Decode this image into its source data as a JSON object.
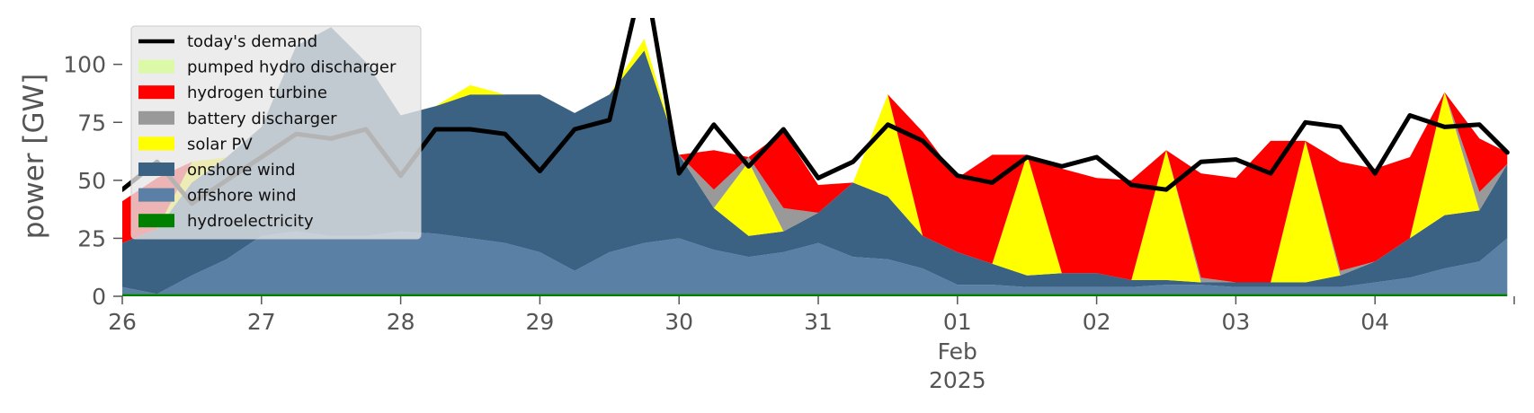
{
  "chart_data": {
    "type": "area",
    "ylabel": "power [GW]",
    "ylim": [
      0,
      120
    ],
    "yticks": [
      0,
      25,
      50,
      75,
      100
    ],
    "xlim": [
      0,
      10
    ],
    "xticks": [
      {
        "x": 0,
        "label": "26"
      },
      {
        "x": 1,
        "label": "27"
      },
      {
        "x": 2,
        "label": "28"
      },
      {
        "x": 3,
        "label": "29"
      },
      {
        "x": 4,
        "label": "30"
      },
      {
        "x": 5,
        "label": "31"
      },
      {
        "x": 6,
        "label": "01"
      },
      {
        "x": 7,
        "label": "02"
      },
      {
        "x": 8,
        "label": "03"
      },
      {
        "x": 9,
        "label": "04"
      }
    ],
    "x_sublabels": [
      {
        "x": 6,
        "lines": [
          "Feb",
          "2025"
        ]
      }
    ],
    "grid": false,
    "legend_position": "top-left",
    "x": [
      0,
      0.25,
      0.5,
      0.75,
      1,
      1.25,
      1.5,
      1.75,
      2,
      2.25,
      2.5,
      2.75,
      3,
      3.25,
      3.5,
      3.75,
      4,
      4.25,
      4.5,
      4.75,
      5,
      5.25,
      5.5,
      5.75,
      6,
      6.25,
      6.5,
      6.75,
      7,
      7.25,
      7.5,
      7.75,
      8,
      8.25,
      8.5,
      8.75,
      9,
      9.25,
      9.5,
      9.75,
      9.95
    ],
    "series": [
      {
        "name": "hydroelectricity",
        "color": "#008000",
        "values": [
          1,
          1,
          1,
          1,
          1,
          1,
          1,
          1,
          1,
          1,
          1,
          1,
          1,
          1,
          1,
          1,
          1,
          1,
          1,
          1,
          1,
          1,
          1,
          1,
          1,
          1,
          1,
          1,
          1,
          1,
          1,
          1,
          1,
          1,
          1,
          1,
          1,
          1,
          1,
          1,
          1
        ]
      },
      {
        "name": "offshore wind",
        "color": "#5b80a5",
        "values": [
          3,
          0,
          8,
          15,
          25,
          27,
          25,
          25,
          27,
          26,
          24,
          22,
          18,
          10,
          18,
          22,
          24,
          19,
          16,
          18,
          22,
          16,
          15,
          11,
          4,
          4,
          3,
          3,
          3,
          3,
          4,
          4,
          3,
          3,
          3,
          3,
          5,
          7,
          11,
          14,
          24
        ]
      },
      {
        "name": "onshore wind",
        "color": "#3b6183",
        "values": [
          19,
          28,
          40,
          44,
          47,
          80,
          90,
          75,
          50,
          55,
          62,
          64,
          68,
          68,
          68,
          83,
          36,
          18,
          9,
          9,
          13,
          32,
          27,
          14,
          14,
          9,
          5,
          6,
          6,
          3,
          2,
          1,
          2,
          2,
          2,
          5,
          9,
          17,
          23,
          22,
          32
        ]
      },
      {
        "name": "solar PV",
        "color": "#ffff00",
        "values": [
          0,
          0,
          9,
          0,
          0,
          0,
          0,
          0,
          0,
          0,
          4,
          0,
          0,
          0,
          0,
          5,
          0,
          0,
          32,
          0,
          0,
          0,
          44,
          0,
          0,
          0,
          52,
          0,
          0,
          0,
          56,
          0,
          0,
          0,
          61,
          0,
          0,
          0,
          53,
          0,
          0
        ]
      },
      {
        "name": "battery discharger",
        "color": "#999999",
        "values": [
          0,
          0,
          0,
          0,
          0,
          0,
          0,
          0,
          0,
          0,
          0,
          0,
          0,
          0,
          0,
          0,
          0,
          8,
          2,
          10,
          0,
          0,
          0,
          0,
          0,
          0,
          0,
          0,
          0,
          0,
          0,
          2,
          0,
          0,
          0,
          2,
          0,
          0,
          0,
          8,
          0
        ]
      },
      {
        "name": "hydrogen turbine",
        "color": "#ff0000",
        "values": [
          18,
          22,
          0,
          0,
          0,
          0,
          0,
          0,
          0,
          0,
          0,
          0,
          0,
          0,
          0,
          0,
          0,
          17,
          0,
          33,
          12,
          0,
          0,
          45,
          32,
          47,
          0,
          45,
          41,
          43,
          0,
          45,
          45,
          61,
          0,
          47,
          40,
          35,
          0,
          23,
          5
        ]
      },
      {
        "name": "pumped hydro discharger",
        "color": "#dbf9a7",
        "values": [
          0,
          0,
          0,
          0,
          0,
          0,
          0,
          0,
          0,
          0,
          0,
          0,
          0,
          0,
          0,
          0,
          0,
          0,
          0,
          0,
          0,
          0,
          0,
          0,
          0,
          0,
          0,
          0,
          0,
          0,
          0,
          0,
          0,
          0,
          0,
          0,
          0,
          0,
          0,
          0,
          0
        ]
      }
    ],
    "demand": {
      "name": "today's demand",
      "color": "#000000",
      "values": [
        46,
        58,
        40,
        50,
        60,
        70,
        68,
        72,
        52,
        72,
        72,
        70,
        54,
        72,
        76,
        140,
        53,
        74,
        56,
        72,
        51,
        58,
        74,
        67,
        52,
        49,
        60,
        56,
        60,
        48,
        46,
        58,
        59,
        53,
        75,
        73,
        53,
        78,
        73,
        74,
        62
      ]
    }
  }
}
